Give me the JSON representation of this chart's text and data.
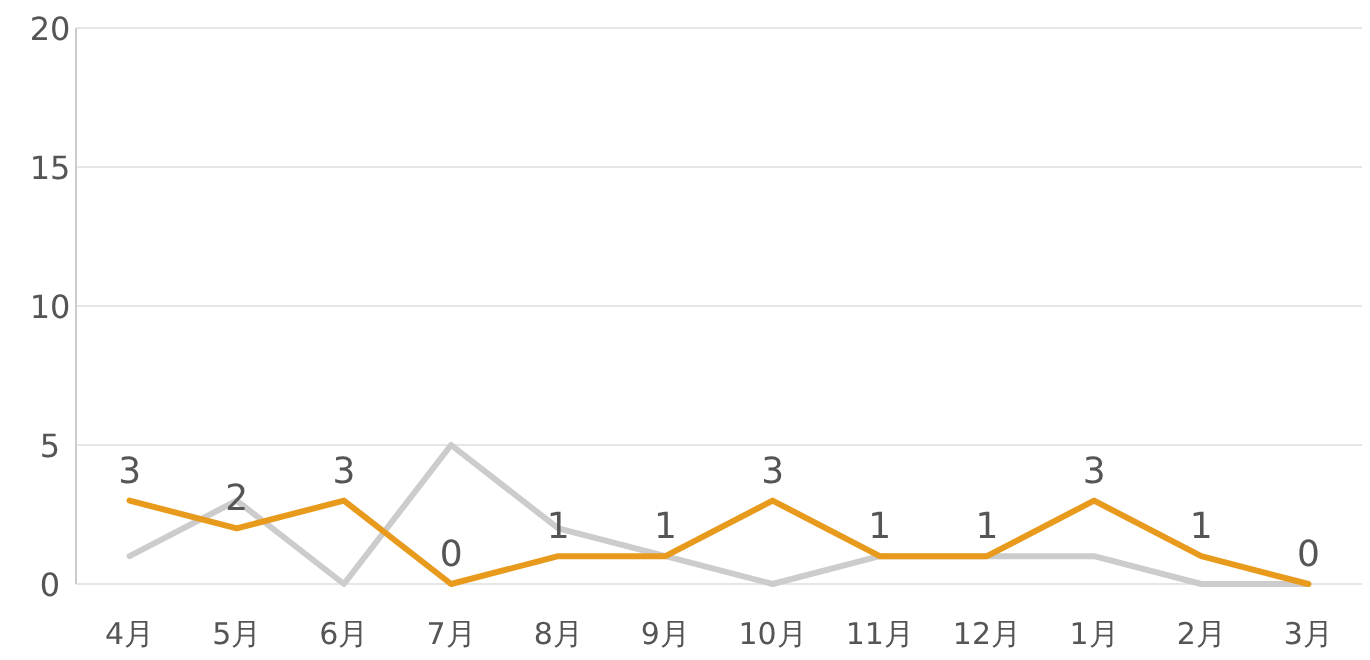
{
  "chart_data": {
    "type": "line",
    "categories": [
      "4月",
      "5月",
      "6月",
      "7月",
      "8月",
      "9月",
      "10月",
      "11月",
      "12月",
      "1月",
      "2月",
      "3月"
    ],
    "series": [
      {
        "color": "#cccccc",
        "values": [
          1,
          3,
          0,
          5,
          2,
          1,
          0,
          1,
          1,
          1,
          0,
          0
        ]
      },
      {
        "color": "#e89a1c",
        "values": [
          3,
          2,
          3,
          0,
          1,
          1,
          3,
          1,
          1,
          3,
          1,
          0
        ],
        "value_labels": [
          "3",
          "2",
          "3",
          "0",
          "1",
          "1",
          "3",
          "1",
          "1",
          "3",
          "1",
          "0"
        ]
      }
    ],
    "ylim": [
      0,
      20
    ],
    "yticks": [
      0,
      5,
      10,
      15,
      20
    ],
    "grid": "y",
    "marker": "none",
    "line_style": "solid"
  }
}
